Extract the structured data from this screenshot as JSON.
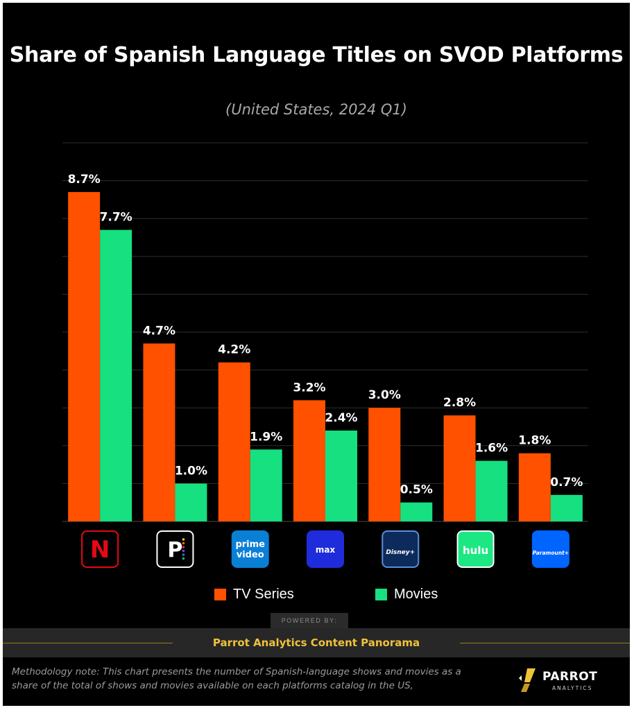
{
  "title": "Share of Spanish Language Titles on SVOD Platforms",
  "subtitle": "(United States, 2024 Q1)",
  "colors": {
    "tv_series": "#ff5100",
    "movies": "#16e080",
    "background": "#000000",
    "gridline": "#2f2f2f",
    "accent": "#f0c23a"
  },
  "chart_data": {
    "type": "bar",
    "title": "Share of Spanish Language Titles on SVOD Platforms",
    "subtitle": "(United States, 2024 Q1)",
    "categories": [
      "Netflix",
      "Peacock",
      "Prime Video",
      "Max",
      "Disney+",
      "Hulu",
      "Paramount+"
    ],
    "series": [
      {
        "name": "TV Series",
        "values": [
          8.7,
          4.7,
          4.2,
          3.2,
          3.0,
          2.8,
          1.8
        ],
        "labels": [
          "8.7%",
          "4.7%",
          "4.2%",
          "3.2%",
          "3.0%",
          "2.8%",
          "1.8%"
        ]
      },
      {
        "name": "Movies",
        "values": [
          7.7,
          1.0,
          1.9,
          2.4,
          0.5,
          1.6,
          0.7
        ],
        "labels": [
          "7.7%",
          "1.0%",
          "1.9%",
          "2.4%",
          "0.5%",
          "1.6%",
          "0.7%"
        ]
      }
    ],
    "ylim": [
      0,
      10
    ],
    "grid": true,
    "legend_position": "bottom"
  },
  "logos": [
    {
      "icon": "netflix-logo-icon",
      "text": "N",
      "bg": "#000000",
      "border": "#e50914",
      "color": "#e50914"
    },
    {
      "icon": "peacock-logo-icon",
      "text": "P",
      "bg": "#000000",
      "border": "#ffffff",
      "color": "#ffffff"
    },
    {
      "icon": "prime-video-logo-icon",
      "text": "prime video",
      "line1": "prime",
      "line2": "video",
      "bg": "#0a7fd6",
      "border": "#0a7fd6",
      "color": "#ffffff"
    },
    {
      "icon": "max-logo-icon",
      "text": "max",
      "bg": "#1f2cdb",
      "border": "#1f2cdb",
      "color": "#ffffff"
    },
    {
      "icon": "disney-plus-logo-icon",
      "text": "Disney+",
      "bg": "#0d2a5c",
      "border": "#5a8fd8",
      "color": "#ffffff"
    },
    {
      "icon": "hulu-logo-icon",
      "text": "hulu",
      "bg": "#1ce783",
      "border": "#ffffff",
      "color": "#ffffff"
    },
    {
      "icon": "paramount-plus-logo-icon",
      "text": "Paramount+",
      "bg": "#0064ff",
      "border": "#0064ff",
      "color": "#ffffff"
    }
  ],
  "legend": {
    "tv_series": "TV Series",
    "movies": "Movies"
  },
  "powered_by": "POWERED BY:",
  "footer": "Parrot Analytics Content Panorama",
  "methodology": "Methodology note: This chart presents the number of Spanish-language shows and movies as a share of the total of shows and movies available on each platforms catalog in the US,",
  "brand": {
    "name": "PARROT",
    "sub": "ANALYTICS"
  }
}
